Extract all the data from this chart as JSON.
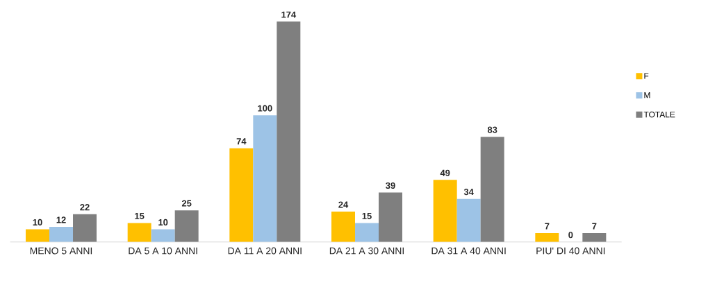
{
  "chart_data": {
    "type": "bar",
    "categories": [
      "MENO 5 ANNI",
      "DA 5 A 10 ANNI",
      "DA 11 A 20 ANNI",
      "DA 21 A 30 ANNI",
      "DA 31 A 40 ANNI",
      "PIU' DI 40 ANNI"
    ],
    "series": [
      {
        "name": "F",
        "color": "#ffc000",
        "values": [
          10,
          15,
          74,
          24,
          49,
          7
        ]
      },
      {
        "name": "M",
        "color": "#9dc3e6",
        "values": [
          12,
          10,
          100,
          15,
          34,
          0
        ]
      },
      {
        "name": "TOTALE",
        "color": "#7f7f7f",
        "values": [
          22,
          25,
          174,
          39,
          83,
          7
        ]
      }
    ],
    "data_labels": true,
    "legend": "right"
  }
}
